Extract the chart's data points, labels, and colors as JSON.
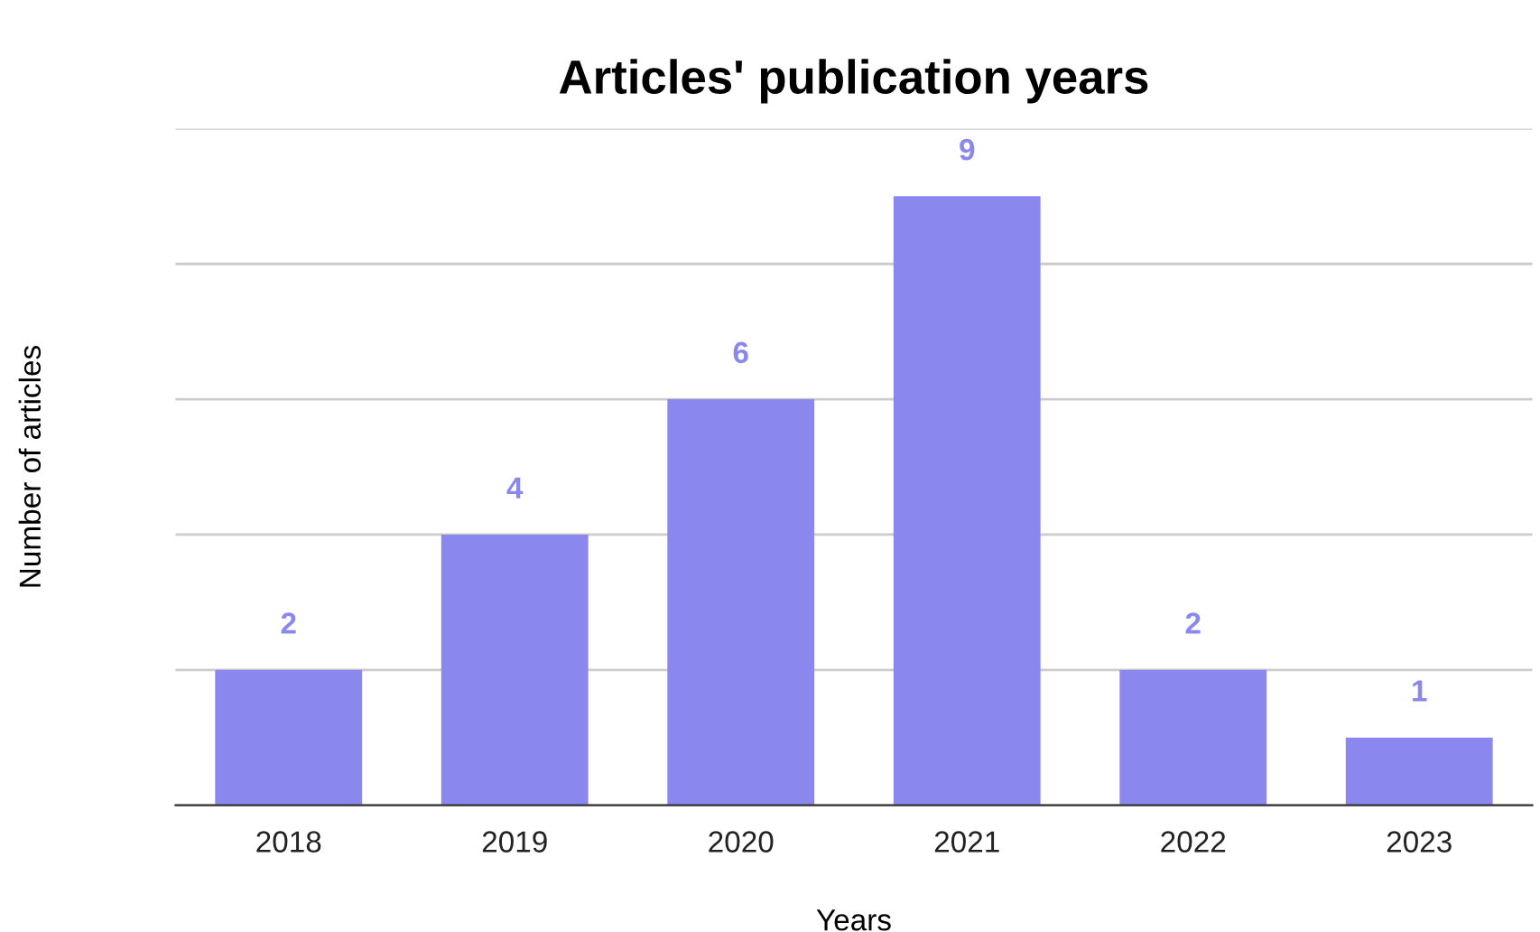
{
  "chart_data": {
    "type": "bar",
    "title": "Articles' publication years",
    "xlabel": "Years",
    "ylabel": "Number of articles",
    "categories": [
      "2018",
      "2019",
      "2020",
      "2021",
      "2022",
      "2023"
    ],
    "values": [
      2,
      4,
      6,
      9,
      2,
      1
    ],
    "color": "#8a88ef",
    "ylim": [
      0,
      10
    ],
    "yticks": [
      {
        "value": 0,
        "label": null
      },
      {
        "value": 2,
        "label": null
      },
      {
        "value": 4,
        "label": null
      },
      {
        "value": 6,
        "label": null
      },
      {
        "value": 8,
        "label": null
      },
      {
        "value": 10,
        "label": null
      }
    ],
    "tick_labels": "x",
    "grid": "y",
    "data_labels": true
  }
}
